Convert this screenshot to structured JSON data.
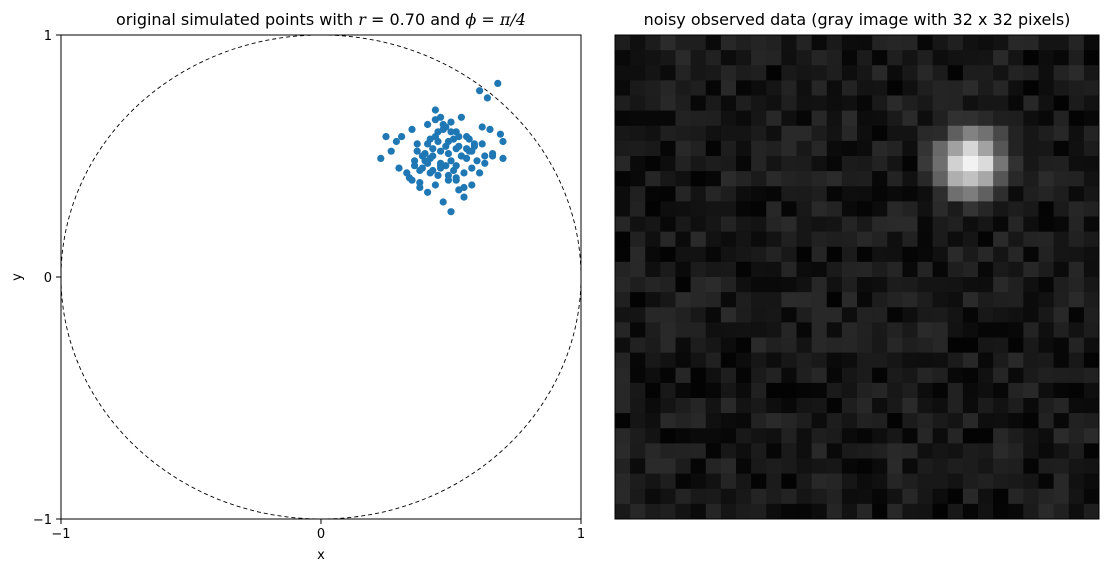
{
  "chart_data": [
    {
      "type": "scatter",
      "title": {
        "prefix": "original simulated points with ",
        "r_symbol": "r",
        "r_value": " = 0.70",
        "middle": " and ",
        "phi_symbol": "ϕ",
        "phi_value": " = π/4"
      },
      "xlabel": "x",
      "ylabel": "y",
      "xlim": [
        -1,
        1
      ],
      "ylim": [
        -1,
        1
      ],
      "xticks": [
        "−1",
        "0",
        "1"
      ],
      "yticks": [
        "−1",
        "0",
        "1"
      ],
      "grid": false,
      "color": "#1f77b4",
      "circle": {
        "radius": 1,
        "style": "dashed",
        "color": "#000000"
      },
      "series": [
        {
          "x": [
            0.68,
            0.61,
            0.64,
            0.23,
            0.25,
            0.29,
            0.27,
            0.31,
            0.35,
            0.37,
            0.41,
            0.44,
            0.46,
            0.48,
            0.52,
            0.54,
            0.57,
            0.59,
            0.62,
            0.65,
            0.69,
            0.7,
            0.66,
            0.63,
            0.61,
            0.58,
            0.55,
            0.53,
            0.5,
            0.47,
            0.44,
            0.41,
            0.38,
            0.35,
            0.33,
            0.3,
            0.36,
            0.39,
            0.42,
            0.45,
            0.48,
            0.51,
            0.54,
            0.57,
            0.6,
            0.63,
            0.59,
            0.56,
            0.52,
            0.49,
            0.46,
            0.43,
            0.4,
            0.37,
            0.41,
            0.44,
            0.47,
            0.5,
            0.53,
            0.56,
            0.43,
            0.46,
            0.49,
            0.52,
            0.55,
            0.58,
            0.4,
            0.43,
            0.46,
            0.49,
            0.52,
            0.55,
            0.48,
            0.51,
            0.45,
            0.42,
            0.39,
            0.36,
            0.34,
            0.38,
            0.42,
            0.46,
            0.5,
            0.54,
            0.58,
            0.62,
            0.66,
            0.7,
            0.44,
            0.47,
            0.5,
            0.53,
            0.41,
            0.38,
            0.49,
            0.45,
            0.52,
            0.56
          ],
          "y": [
            0.8,
            0.77,
            0.74,
            0.49,
            0.58,
            0.56,
            0.52,
            0.58,
            0.61,
            0.55,
            0.63,
            0.69,
            0.66,
            0.62,
            0.6,
            0.66,
            0.57,
            0.54,
            0.62,
            0.61,
            0.59,
            0.56,
            0.5,
            0.47,
            0.43,
            0.38,
            0.33,
            0.36,
            0.27,
            0.31,
            0.38,
            0.35,
            0.37,
            0.4,
            0.43,
            0.45,
            0.48,
            0.45,
            0.49,
            0.42,
            0.46,
            0.44,
            0.5,
            0.52,
            0.48,
            0.5,
            0.55,
            0.58,
            0.53,
            0.56,
            0.52,
            0.5,
            0.48,
            0.52,
            0.55,
            0.58,
            0.61,
            0.64,
            0.54,
            0.49,
            0.44,
            0.46,
            0.4,
            0.41,
            0.43,
            0.45,
            0.51,
            0.53,
            0.47,
            0.42,
            0.4,
            0.37,
            0.54,
            0.57,
            0.6,
            0.57,
            0.5,
            0.46,
            0.41,
            0.39,
            0.43,
            0.45,
            0.48,
            0.5,
            0.52,
            0.55,
            0.51,
            0.49,
            0.65,
            0.63,
            0.6,
            0.58,
            0.47,
            0.44,
            0.51,
            0.56,
            0.46,
            0.53
          ]
        }
      ]
    },
    {
      "type": "heatmap",
      "title": "noisy observed data (gray image with 32 x 32 pixels)",
      "rows": 32,
      "cols": 32,
      "colormap": "gray",
      "blob": {
        "center_row": 8,
        "center_col": 23,
        "peak": 0.96
      },
      "noise_mean": 0.09,
      "noise_amplitude": 0.1
    }
  ]
}
